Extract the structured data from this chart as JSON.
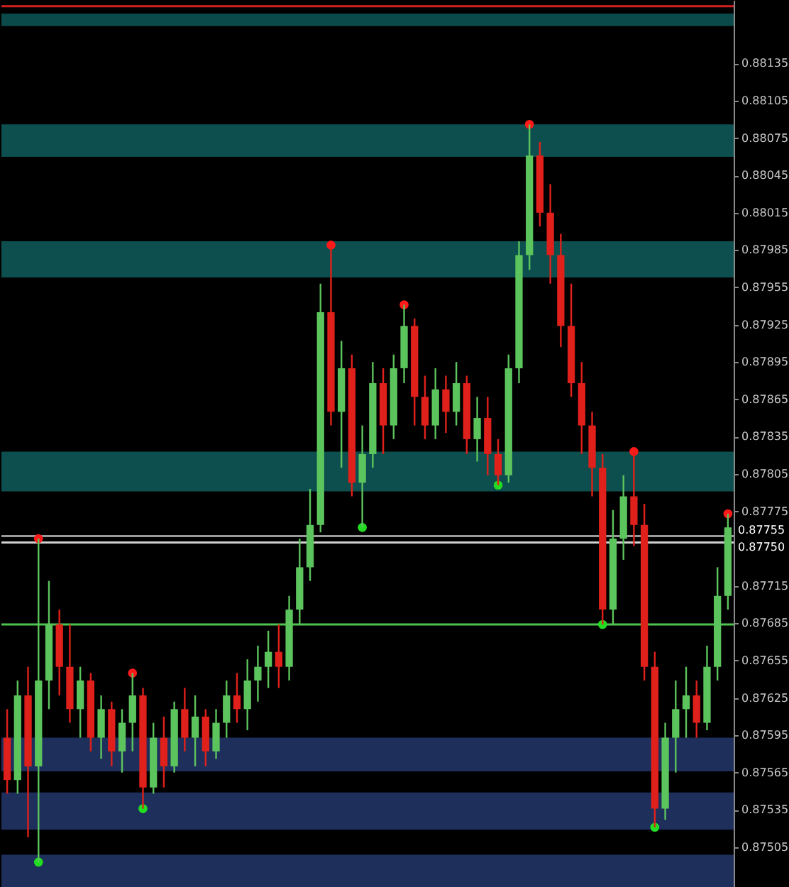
{
  "chart_data": {
    "type": "candlestick",
    "categories": [
      null,
      null,
      null,
      null,
      null,
      null,
      null,
      null,
      null,
      null,
      null,
      null,
      null,
      null,
      null,
      null,
      null,
      null,
      null,
      null,
      null,
      null,
      null,
      null,
      null,
      null,
      null,
      null,
      null,
      null,
      null,
      null,
      null,
      null,
      null,
      null,
      null,
      null,
      null,
      null,
      null,
      null,
      null,
      null,
      null,
      null,
      null,
      null,
      null,
      null,
      null,
      null,
      null,
      null,
      null,
      null,
      null,
      null,
      null,
      null,
      null,
      null,
      null,
      null,
      null,
      null,
      null,
      null,
      null,
      null
    ],
    "ohlc": [
      [
        0.87593,
        0.87616,
        0.87548,
        0.87559
      ],
      [
        0.87559,
        0.87639,
        0.87548,
        0.87627
      ],
      [
        0.87627,
        0.8765,
        0.87513,
        0.8757
      ],
      [
        0.8757,
        0.87753,
        0.87493,
        0.87639
      ],
      [
        0.87639,
        0.87719,
        0.87616,
        0.87684
      ],
      [
        0.87684,
        0.87696,
        0.87627,
        0.8765
      ],
      [
        0.8765,
        0.87684,
        0.87605,
        0.87616
      ],
      [
        0.87616,
        0.8765,
        0.87593,
        0.87639
      ],
      [
        0.87639,
        0.87645,
        0.87582,
        0.87593
      ],
      [
        0.87593,
        0.87627,
        0.87576,
        0.87616
      ],
      [
        0.87616,
        0.87622,
        0.8757,
        0.87582
      ],
      [
        0.87582,
        0.87616,
        0.87565,
        0.87605
      ],
      [
        0.87605,
        0.87645,
        0.87582,
        0.87627
      ],
      [
        0.87627,
        0.87633,
        0.87536,
        0.87553
      ],
      [
        0.87553,
        0.87605,
        0.87548,
        0.87593
      ],
      [
        0.87593,
        0.8761,
        0.87553,
        0.8757
      ],
      [
        0.8757,
        0.87622,
        0.87565,
        0.87616
      ],
      [
        0.87616,
        0.87633,
        0.87582,
        0.87593
      ],
      [
        0.87593,
        0.87627,
        0.8757,
        0.8761
      ],
      [
        0.8761,
        0.87616,
        0.8757,
        0.87582
      ],
      [
        0.87582,
        0.87616,
        0.87576,
        0.87605
      ],
      [
        0.87605,
        0.87639,
        0.87593,
        0.87627
      ],
      [
        0.87627,
        0.87645,
        0.87605,
        0.87616
      ],
      [
        0.87616,
        0.87656,
        0.87599,
        0.87639
      ],
      [
        0.87639,
        0.87667,
        0.87622,
        0.8765
      ],
      [
        0.8765,
        0.87679,
        0.87633,
        0.87662
      ],
      [
        0.87662,
        0.87684,
        0.87633,
        0.8765
      ],
      [
        0.8765,
        0.87707,
        0.87639,
        0.87696
      ],
      [
        0.87696,
        0.87753,
        0.87684,
        0.8773
      ],
      [
        0.8773,
        0.87793,
        0.87719,
        0.87764
      ],
      [
        0.87764,
        0.87958,
        0.87758,
        0.87935
      ],
      [
        0.87935,
        0.87989,
        0.87844,
        0.87855
      ],
      [
        0.87855,
        0.87912,
        0.8781,
        0.8789
      ],
      [
        0.8789,
        0.87901,
        0.87787,
        0.87798
      ],
      [
        0.87798,
        0.87844,
        0.87762,
        0.87821
      ],
      [
        0.87821,
        0.87895,
        0.8781,
        0.87878
      ],
      [
        0.87878,
        0.8789,
        0.87821,
        0.87844
      ],
      [
        0.87844,
        0.87901,
        0.87833,
        0.8789
      ],
      [
        0.8789,
        0.87941,
        0.87878,
        0.87924
      ],
      [
        0.87924,
        0.8793,
        0.87844,
        0.87867
      ],
      [
        0.87867,
        0.87884,
        0.87833,
        0.87844
      ],
      [
        0.87844,
        0.8789,
        0.87833,
        0.87873
      ],
      [
        0.87873,
        0.87884,
        0.87838,
        0.87855
      ],
      [
        0.87855,
        0.87895,
        0.87844,
        0.87878
      ],
      [
        0.87878,
        0.87884,
        0.87821,
        0.87833
      ],
      [
        0.87833,
        0.87867,
        0.87815,
        0.8785
      ],
      [
        0.8785,
        0.87867,
        0.87804,
        0.87821
      ],
      [
        0.87821,
        0.87833,
        0.87796,
        0.87804
      ],
      [
        0.87804,
        0.87901,
        0.87798,
        0.8789
      ],
      [
        0.8789,
        0.87992,
        0.87878,
        0.87981
      ],
      [
        0.87981,
        0.88086,
        0.87969,
        0.88061
      ],
      [
        0.88061,
        0.88072,
        0.88004,
        0.88015
      ],
      [
        0.88015,
        0.88038,
        0.87958,
        0.87981
      ],
      [
        0.87981,
        0.87998,
        0.87907,
        0.87924
      ],
      [
        0.87924,
        0.87958,
        0.87867,
        0.87878
      ],
      [
        0.87878,
        0.87895,
        0.87821,
        0.87844
      ],
      [
        0.87844,
        0.87855,
        0.87787,
        0.8781
      ],
      [
        0.8781,
        0.87821,
        0.87684,
        0.87696
      ],
      [
        0.87696,
        0.87776,
        0.87684,
        0.87753
      ],
      [
        0.87753,
        0.87804,
        0.87736,
        0.87787
      ],
      [
        0.87787,
        0.87823,
        0.87747,
        0.87764
      ],
      [
        0.87764,
        0.87781,
        0.87639,
        0.8765
      ],
      [
        0.8765,
        0.87662,
        0.87521,
        0.87536
      ],
      [
        0.87536,
        0.87605,
        0.87527,
        0.87593
      ],
      [
        0.87593,
        0.87639,
        0.87565,
        0.87616
      ],
      [
        0.87616,
        0.8765,
        0.87593,
        0.87627
      ],
      [
        0.87627,
        0.87639,
        0.87593,
        0.87605
      ],
      [
        0.87605,
        0.87667,
        0.87599,
        0.8765
      ],
      [
        0.8765,
        0.8773,
        0.87639,
        0.87707
      ],
      [
        0.87707,
        0.87773,
        0.87696,
        0.87762
      ]
    ],
    "colors": [
      "#e0201a",
      "#5cc45c",
      "#e0201a",
      "#5cc45c",
      "#5cc45c",
      "#e0201a",
      "#e0201a",
      "#5cc45c",
      "#e0201a",
      "#5cc45c",
      "#e0201a",
      "#5cc45c",
      "#5cc45c",
      "#e0201a",
      "#5cc45c",
      "#e0201a",
      "#5cc45c",
      "#e0201a",
      "#5cc45c",
      "#e0201a",
      "#5cc45c",
      "#5cc45c",
      "#e0201a",
      "#5cc45c",
      "#5cc45c",
      "#5cc45c",
      "#e0201a",
      "#5cc45c",
      "#5cc45c",
      "#5cc45c",
      "#5cc45c",
      "#e0201a",
      "#5cc45c",
      "#e0201a",
      "#5cc45c",
      "#5cc45c",
      "#e0201a",
      "#5cc45c",
      "#5cc45c",
      "#e0201a",
      "#e0201a",
      "#5cc45c",
      "#e0201a",
      "#5cc45c",
      "#e0201a",
      "#5cc45c",
      "#e0201a",
      "#e0201a",
      "#5cc45c",
      "#5cc45c",
      "#5cc45c",
      "#e0201a",
      "#e0201a",
      "#e0201a",
      "#e0201a",
      "#e0201a",
      "#e0201a",
      "#e0201a",
      "#5cc45c",
      "#5cc45c",
      "#e0201a",
      "#e0201a",
      "#e0201a",
      "#5cc45c",
      "#5cc45c",
      "#5cc45c",
      "#e0201a",
      "#5cc45c",
      "#5cc45c",
      "#5cc45c"
    ],
    "series": [
      {
        "type": "scatter",
        "color": "#ff1a1a",
        "values": [
          null,
          null,
          null,
          0.87753,
          null,
          null,
          null,
          null,
          null,
          null,
          null,
          null,
          0.87645,
          null,
          null,
          null,
          null,
          null,
          null,
          null,
          null,
          null,
          null,
          null,
          null,
          null,
          null,
          null,
          null,
          null,
          null,
          0.87989,
          null,
          null,
          null,
          null,
          null,
          null,
          0.87941,
          null,
          null,
          null,
          null,
          null,
          null,
          null,
          null,
          null,
          null,
          null,
          0.88086,
          null,
          null,
          null,
          null,
          null,
          null,
          null,
          null,
          null,
          0.87823,
          null,
          null,
          null,
          null,
          null,
          null,
          null,
          null,
          0.87773
        ]
      },
      {
        "type": "scatter",
        "color": "#22dd22",
        "values": [
          null,
          null,
          null,
          0.87493,
          null,
          null,
          null,
          null,
          null,
          null,
          null,
          null,
          null,
          0.87536,
          null,
          null,
          null,
          null,
          null,
          null,
          null,
          null,
          null,
          null,
          null,
          null,
          null,
          null,
          null,
          null,
          null,
          null,
          null,
          null,
          0.87762,
          null,
          null,
          null,
          null,
          null,
          null,
          null,
          null,
          null,
          null,
          null,
          null,
          0.87796,
          null,
          null,
          null,
          null,
          null,
          null,
          null,
          null,
          null,
          0.87684,
          null,
          null,
          null,
          null,
          0.87521,
          null,
          null,
          null,
          null,
          null,
          null,
          null
        ]
      }
    ],
    "marker": "circle",
    "ylim": [
      0.87473,
      0.88186
    ],
    "yticks": [
      0.87505,
      0.87535,
      0.87565,
      0.87595,
      0.87625,
      0.87655,
      0.87685,
      0.87715,
      0.87775,
      0.87805,
      0.87835,
      0.87865,
      0.87895,
      0.87925,
      0.87955,
      0.87985,
      0.88015,
      0.88045,
      0.88075,
      0.88105,
      0.88135
    ],
    "ref_lines": [
      {
        "axis": "y",
        "value": 0.88181,
        "color": "#d62020"
      },
      {
        "axis": "y",
        "value": 0.87684,
        "color": "#4fc34f"
      },
      {
        "axis": "y",
        "value": 0.87755,
        "label": "0.87755",
        "color": "#9a9a9a"
      },
      {
        "axis": "y",
        "value": 0.8775,
        "label": "0.87750",
        "color": "#d0d0d0"
      }
    ],
    "bands": [
      {
        "axis": "y",
        "from": 0.88165,
        "to": 0.88175,
        "color": "#0a4a4a"
      },
      {
        "axis": "y",
        "from": 0.8806,
        "to": 0.88086,
        "color": "#0d4f4f"
      },
      {
        "axis": "y",
        "from": 0.87963,
        "to": 0.87992,
        "color": "#0d4f4f"
      },
      {
        "axis": "y",
        "from": 0.87791,
        "to": 0.87823,
        "color": "#0d4f4f"
      },
      {
        "axis": "y",
        "from": 0.87566,
        "to": 0.87593,
        "color": "#1f2f5c"
      },
      {
        "axis": "y",
        "from": 0.87519,
        "to": 0.87549,
        "color": "#1f2f5c"
      },
      {
        "axis": "y",
        "from": 0.87473,
        "to": 0.87499,
        "color": "#1f2f5c"
      }
    ],
    "grid": false,
    "tick_labels": "y"
  }
}
